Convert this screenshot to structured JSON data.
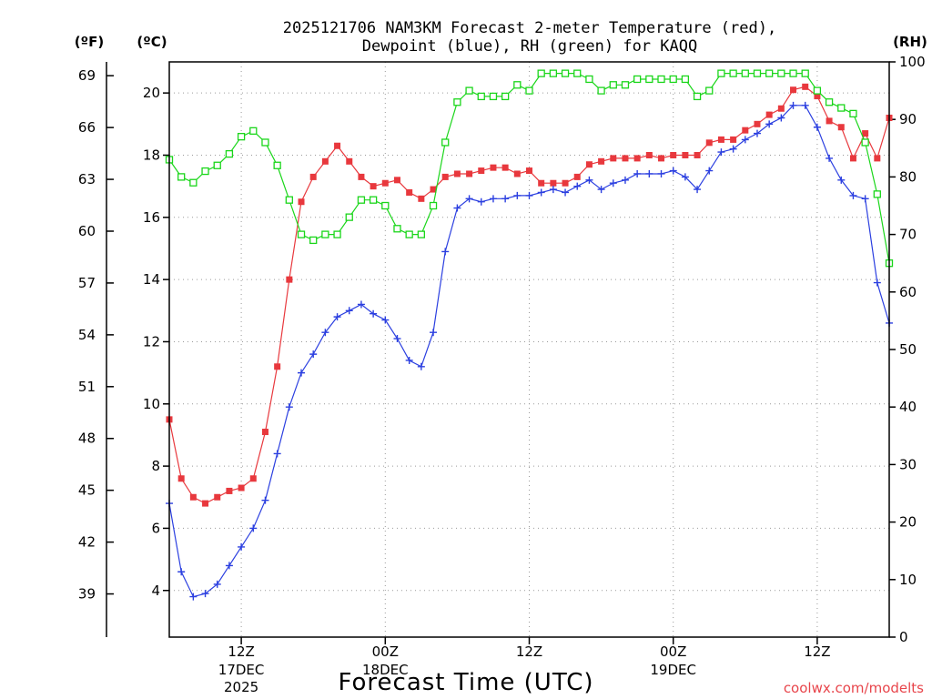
{
  "page": {
    "title_line1": "2025121706 NAM3KM Forecast 2-meter Temperature (red),",
    "title_line2": "Dewpoint (blue), RH (green) for KAQQ",
    "watermark": "coolwx.com/modelts"
  },
  "chart_data": {
    "type": "line",
    "title": "2025121706 NAM3KM Forecast 2-meter Temperature (red), Dewpoint (blue), RH (green) for KAQQ",
    "xlabel": "Forecast Time (UTC)",
    "x_unit": "forecast hour",
    "xlim": [
      0,
      60
    ],
    "units": {
      "fahrenheit": "(ºF)",
      "celsius": "(ºC)",
      "rh": "(RH)"
    },
    "y_left_c": {
      "lim": [
        2.5,
        21.0
      ],
      "ticks": [
        4,
        6,
        8,
        10,
        12,
        14,
        16,
        18,
        20
      ],
      "grid": true
    },
    "y_left_f": {
      "ticks": [
        39,
        42,
        45,
        48,
        51,
        54,
        57,
        60,
        63,
        66,
        69
      ]
    },
    "y_right_rh": {
      "lim": [
        0,
        100
      ],
      "ticks": [
        0,
        10,
        20,
        30,
        40,
        50,
        60,
        70,
        80,
        90,
        100
      ]
    },
    "x_ticks": [
      {
        "hour": 6,
        "label": "12Z",
        "date": "17DEC",
        "year": "2025"
      },
      {
        "hour": 18,
        "label": "00Z",
        "date": "18DEC",
        "year": ""
      },
      {
        "hour": 30,
        "label": "12Z",
        "date": "",
        "year": ""
      },
      {
        "hour": 42,
        "label": "00Z",
        "date": "19DEC",
        "year": ""
      },
      {
        "hour": 54,
        "label": "12Z",
        "date": "",
        "year": ""
      }
    ],
    "series": [
      {
        "name": "Temperature",
        "axis": "celsius",
        "color": "#e8383d",
        "marker": "filled-square",
        "x": [
          0,
          1,
          2,
          3,
          4,
          5,
          6,
          7,
          8,
          9,
          10,
          11,
          12,
          13,
          14,
          15,
          16,
          17,
          18,
          19,
          20,
          21,
          22,
          23,
          24,
          25,
          26,
          27,
          28,
          29,
          30,
          31,
          32,
          33,
          34,
          35,
          36,
          37,
          38,
          39,
          40,
          41,
          42,
          43,
          44,
          45,
          46,
          47,
          48,
          49,
          50,
          51,
          52,
          53,
          54,
          55,
          56,
          57,
          58,
          59,
          60
        ],
        "values": [
          9.5,
          7.6,
          7.0,
          6.8,
          7.0,
          7.2,
          7.3,
          7.6,
          9.1,
          11.2,
          14.0,
          16.5,
          17.3,
          17.8,
          18.3,
          17.8,
          17.3,
          17.0,
          17.1,
          17.2,
          16.8,
          16.6,
          16.9,
          17.3,
          17.4,
          17.4,
          17.5,
          17.6,
          17.6,
          17.4,
          17.5,
          17.1,
          17.1,
          17.1,
          17.3,
          17.7,
          17.8,
          17.9,
          17.9,
          17.9,
          18.0,
          17.9,
          18.0,
          18.0,
          18.0,
          18.4,
          18.5,
          18.5,
          18.8,
          19.0,
          19.3,
          19.5,
          20.1,
          20.2,
          19.9,
          19.1,
          18.9,
          17.9,
          18.7,
          17.9,
          19.2
        ]
      },
      {
        "name": "Dewpoint",
        "axis": "celsius",
        "color": "#2b3fe0",
        "marker": "plus",
        "x": [
          0,
          1,
          2,
          3,
          4,
          5,
          6,
          7,
          8,
          9,
          10,
          11,
          12,
          13,
          14,
          15,
          16,
          17,
          18,
          19,
          20,
          21,
          22,
          23,
          24,
          25,
          26,
          27,
          28,
          29,
          30,
          31,
          32,
          33,
          34,
          35,
          36,
          37,
          38,
          39,
          40,
          41,
          42,
          43,
          44,
          45,
          46,
          47,
          48,
          49,
          50,
          51,
          52,
          53,
          54,
          55,
          56,
          57,
          58,
          59,
          60
        ],
        "values": [
          6.8,
          4.6,
          3.8,
          3.9,
          4.2,
          4.8,
          5.4,
          6.0,
          6.9,
          8.4,
          9.9,
          11.0,
          11.6,
          12.3,
          12.8,
          13.0,
          13.2,
          12.9,
          12.7,
          12.1,
          11.4,
          11.2,
          12.3,
          14.9,
          16.3,
          16.6,
          16.5,
          16.6,
          16.6,
          16.7,
          16.7,
          16.8,
          16.9,
          16.8,
          17.0,
          17.2,
          16.9,
          17.1,
          17.2,
          17.4,
          17.4,
          17.4,
          17.5,
          17.3,
          16.9,
          17.5,
          18.1,
          18.2,
          18.5,
          18.7,
          19.0,
          19.2,
          19.6,
          19.6,
          18.9,
          17.9,
          17.2,
          16.7,
          16.6,
          13.9,
          12.6
        ]
      },
      {
        "name": "RH",
        "axis": "rh",
        "color": "#1ad61a",
        "marker": "open-square",
        "x": [
          0,
          1,
          2,
          3,
          4,
          5,
          6,
          7,
          8,
          9,
          10,
          11,
          12,
          13,
          14,
          15,
          16,
          17,
          18,
          19,
          20,
          21,
          22,
          23,
          24,
          25,
          26,
          27,
          28,
          29,
          30,
          31,
          32,
          33,
          34,
          35,
          36,
          37,
          38,
          39,
          40,
          41,
          42,
          43,
          44,
          45,
          46,
          47,
          48,
          49,
          50,
          51,
          52,
          53,
          54,
          55,
          56,
          57,
          58,
          59,
          60
        ],
        "values": [
          83,
          80,
          79,
          81,
          82,
          84,
          87,
          88,
          86,
          82,
          76,
          70,
          69,
          70,
          70,
          73,
          76,
          76,
          75,
          71,
          70,
          70,
          75,
          86,
          93,
          95,
          94,
          94,
          94,
          96,
          95,
          98,
          98,
          98,
          98,
          97,
          95,
          96,
          96,
          97,
          97,
          97,
          97,
          97,
          94,
          95,
          98,
          98,
          98,
          98,
          98,
          98,
          98,
          98,
          95,
          93,
          92,
          91,
          86,
          77,
          65
        ]
      }
    ]
  }
}
